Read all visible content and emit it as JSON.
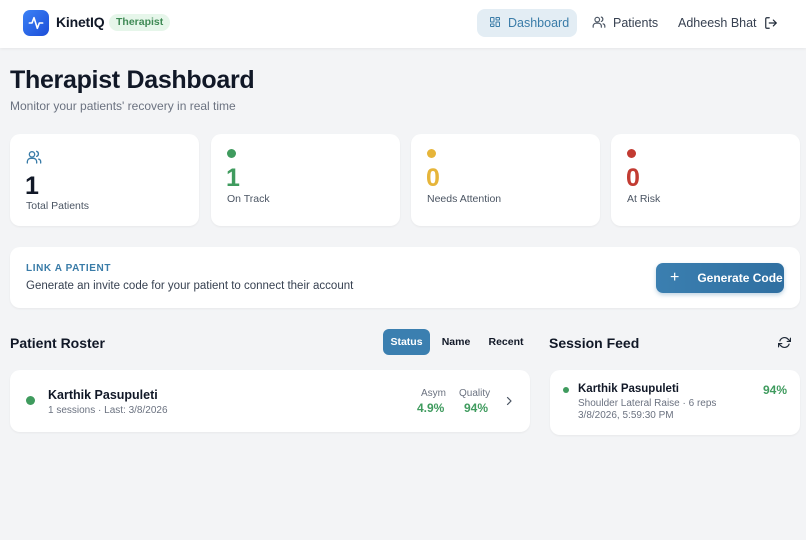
{
  "header": {
    "brand": "KinetIQ",
    "role_badge": "Therapist",
    "nav": [
      {
        "label": "Dashboard",
        "icon": "grid-icon",
        "active": true
      },
      {
        "label": "Patients",
        "icon": "users-icon",
        "active": false
      }
    ],
    "user_name": "Adheesh Bhat",
    "logout_icon": "logout-icon"
  },
  "page": {
    "title": "Therapist Dashboard",
    "subtitle": "Monitor your patients' recovery in real time"
  },
  "stats": [
    {
      "value": "1",
      "label": "Total Patients",
      "color": "#111827",
      "icon": "users-icon"
    },
    {
      "value": "1",
      "label": "On Track",
      "color": "#3f9b5e"
    },
    {
      "value": "0",
      "label": "Needs Attention",
      "color": "#e6b53a"
    },
    {
      "value": "0",
      "label": "At Risk",
      "color": "#c23b32"
    }
  ],
  "link_patient": {
    "title": "LINK A PATIENT",
    "description": "Generate an invite code for your patient to connect their account",
    "button_label": "Generate Code"
  },
  "roster": {
    "title": "Patient Roster",
    "sort_options": [
      "Status",
      "Name",
      "Recent"
    ],
    "active_sort": "Status",
    "patients": [
      {
        "name": "Karthik Pasupuleti",
        "meta": "1 sessions · Last: 3/8/2026",
        "asym_label": "Asym",
        "asym_value": "4.9%",
        "quality_label": "Quality",
        "quality_value": "94%",
        "status_color": "#3f9b5e"
      }
    ]
  },
  "feed": {
    "title": "Session Feed",
    "items": [
      {
        "name": "Karthik Pasupuleti",
        "score": "94%",
        "exercise": "Shoulder Lateral Raise · 6 reps",
        "timestamp": "3/8/2026, 5:59:30 PM"
      }
    ]
  },
  "colors": {
    "accent": "#3a7ca8",
    "success": "#3f9b5e",
    "warning": "#e6b53a",
    "danger": "#c23b32"
  }
}
